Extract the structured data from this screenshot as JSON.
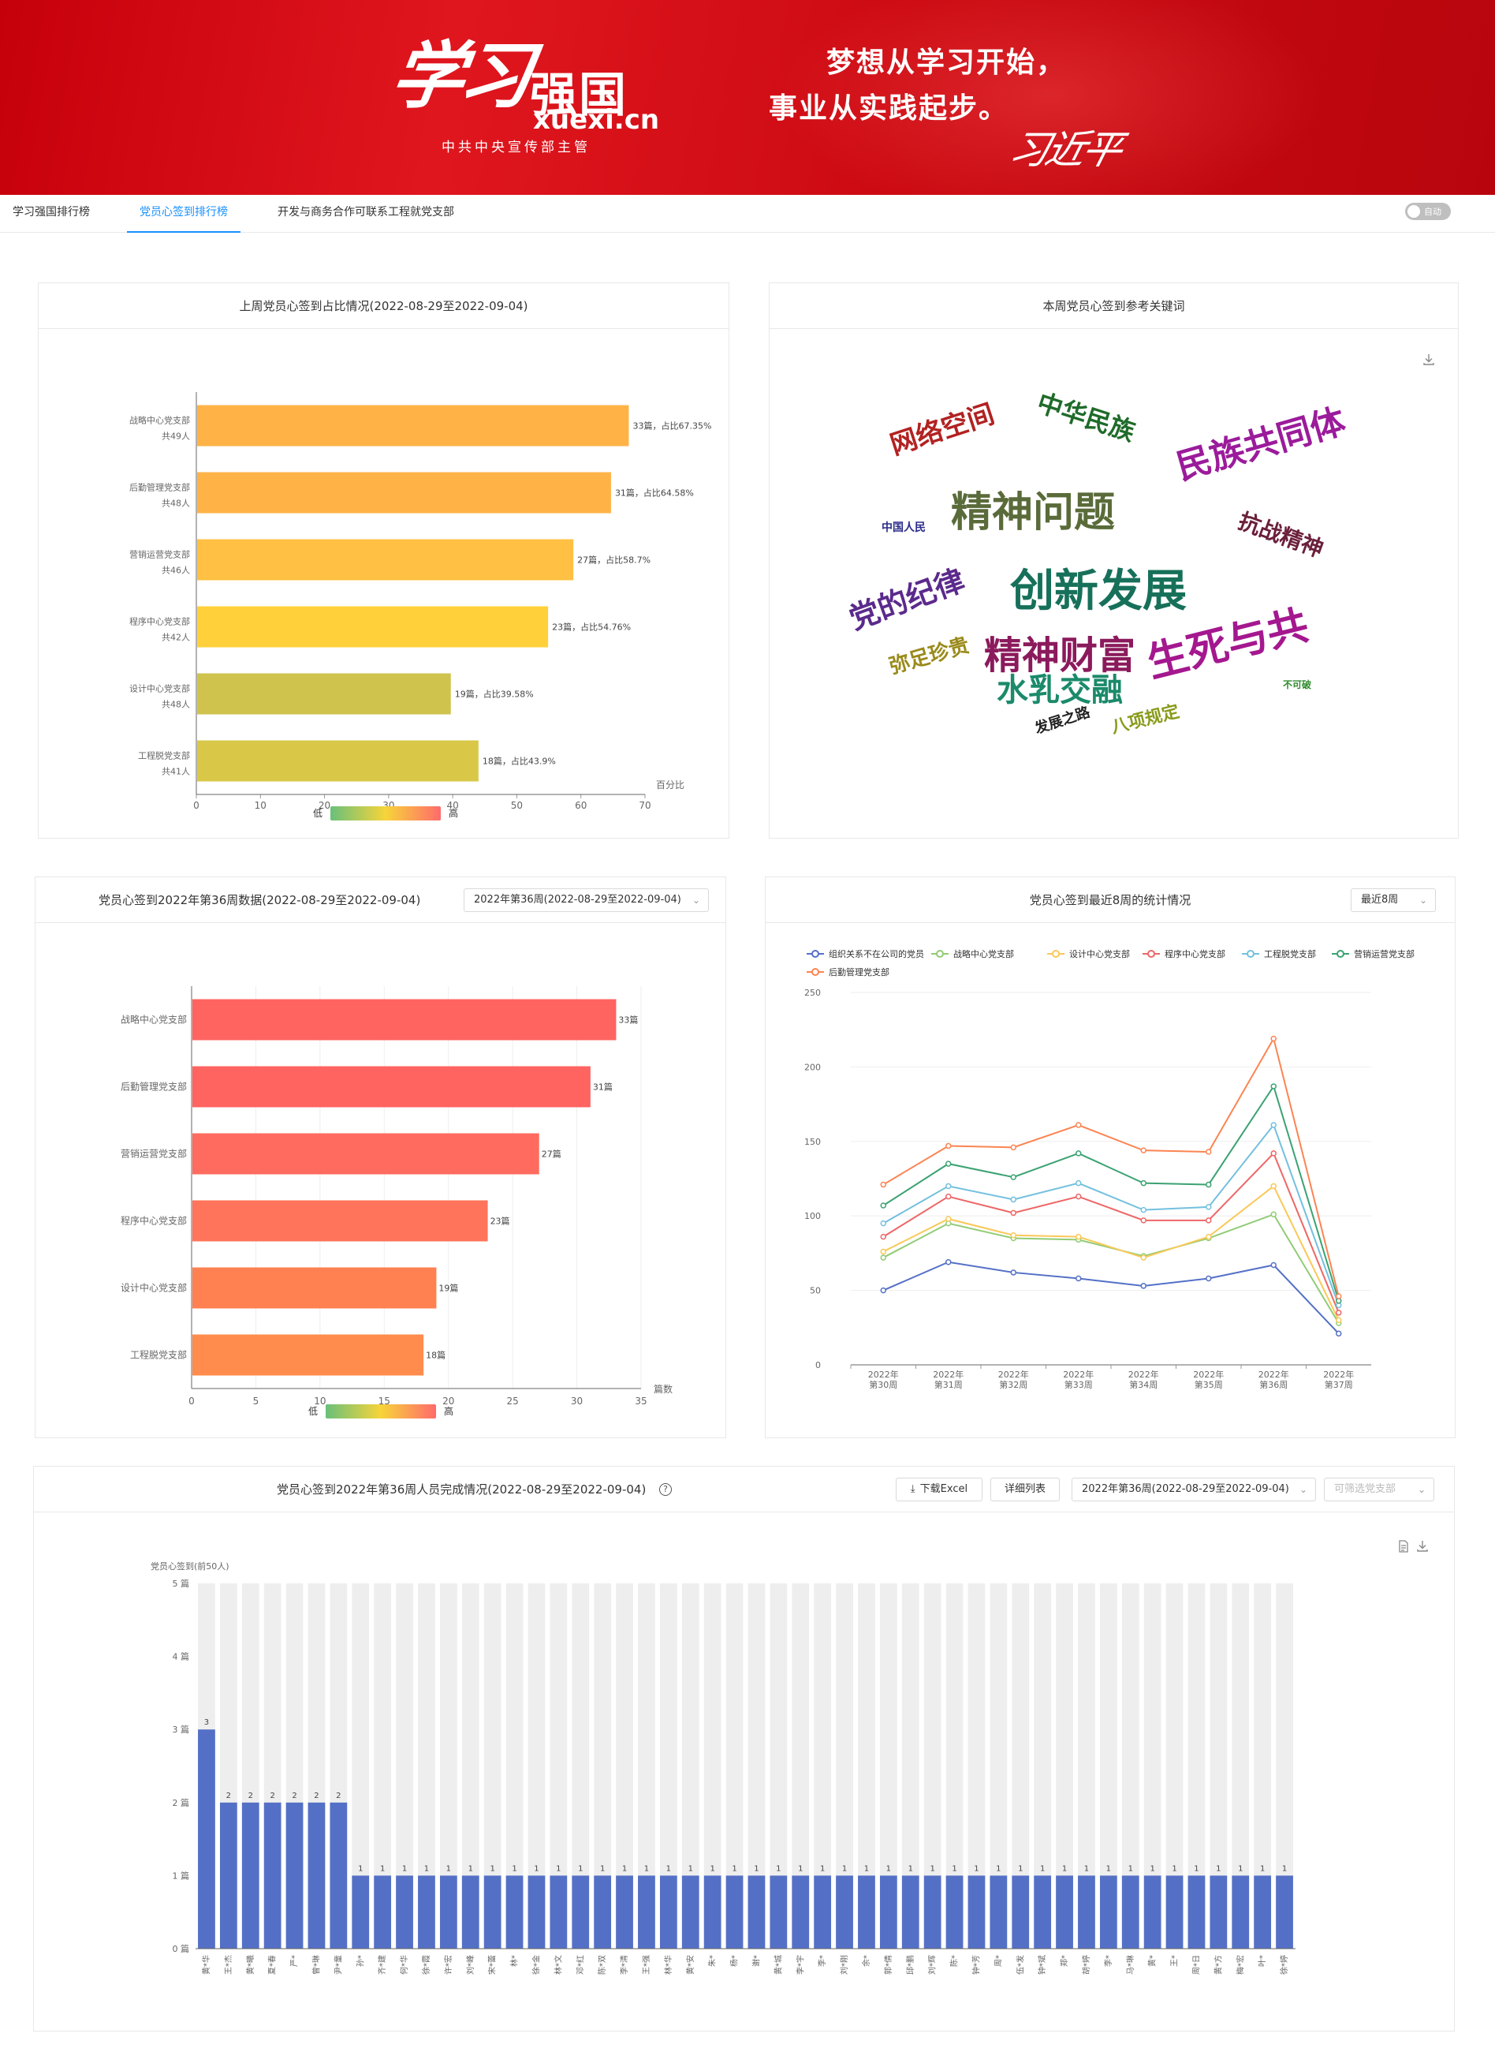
{
  "banner": {
    "logo_script": "学习",
    "logo_strong": "强国",
    "logo_url": "xuexi.cn",
    "logo_sub": "中共中央宣传部主管",
    "slogan_line1": "梦想从学习开始，",
    "slogan_line2": "事业从实践起步。",
    "signature": "习近平"
  },
  "tabs": [
    {
      "label": "学习强国排行榜"
    },
    {
      "label": "党员心签到排行榜",
      "active": true
    },
    {
      "label": "开发与商务合作可联系工程就党支部"
    }
  ],
  "toggle": {
    "label": "自动"
  },
  "colors": {
    "accent": "#1890ff",
    "banner_red": "#d10f17",
    "bar_blue": "#5470c6",
    "bar_bg": "#eeeeee"
  },
  "card1": {
    "title": "上周党员心签到占比情况(2022-08-29至2022-09-04)",
    "chart_data": {
      "type": "bar",
      "orientation": "horizontal",
      "categories": [
        "战略中心党支部",
        "后勤管理党支部",
        "营销运营党支部",
        "程序中心党支部",
        "设计中心党支部",
        "工程脱党支部"
      ],
      "category_sublabels": [
        "共49人",
        "共48人",
        "共46人",
        "共42人",
        "共48人",
        "共41人"
      ],
      "values": [
        67.35,
        64.58,
        58.7,
        54.76,
        39.58,
        43.9
      ],
      "data_labels": [
        "33篇，占比67.35%",
        "31篇，占比64.58%",
        "27篇，占比58.7%",
        "23篇，占比54.76%",
        "19篇，占比39.58%",
        "18篇，占比43.9%"
      ],
      "xlim": [
        0,
        70
      ],
      "xticks": [
        "0",
        "10",
        "20",
        "30",
        "40",
        "50",
        "60",
        "70"
      ],
      "xlabel": "百分比",
      "colors": [
        "#ffb347",
        "#ffb347",
        "#ffc043",
        "#ffd03a",
        "#cfc34e",
        "#d9c848"
      ],
      "legend": {
        "low": "低",
        "high": "高"
      }
    }
  },
  "card2": {
    "title": "本周党员心签到参考关键词",
    "download_icon": "download-icon",
    "words": [
      {
        "text": "网络空间",
        "color": "#b22222"
      },
      {
        "text": "中华民族",
        "color": "#1f6b2a"
      },
      {
        "text": "民族共同体",
        "color": "#9b1b9b"
      },
      {
        "text": "精神问题",
        "color": "#5a6b3a"
      },
      {
        "text": "中国人民",
        "color": "#2c2c8c"
      },
      {
        "text": "抗战精神",
        "color": "#6b1f3a"
      },
      {
        "text": "创新发展",
        "color": "#17705a"
      },
      {
        "text": "党的纪律",
        "color": "#5b2a8c"
      },
      {
        "text": "精神财富",
        "color": "#8b1a5c"
      },
      {
        "text": "生死与共",
        "color": "#a4188f"
      },
      {
        "text": "弥足珍贵",
        "color": "#9a8a1a"
      },
      {
        "text": "水乳交融",
        "color": "#1b8a6a"
      },
      {
        "text": "不可破",
        "color": "#2e8b2e"
      },
      {
        "text": "发展之路",
        "color": "#222222"
      },
      {
        "text": "八项规定",
        "color": "#8a9a1a"
      }
    ]
  },
  "card3": {
    "title": "党员心签到2022年第36周数据(2022-08-29至2022-09-04)",
    "select_value": "2022年第36周(2022-08-29至2022-09-04)",
    "chart_data": {
      "type": "bar",
      "orientation": "horizontal",
      "categories": [
        "战略中心党支部",
        "后勤管理党支部",
        "营销运营党支部",
        "程序中心党支部",
        "设计中心党支部",
        "工程脱党支部"
      ],
      "values": [
        33,
        31,
        27,
        23,
        19,
        18
      ],
      "data_labels": [
        "33篇",
        "31篇",
        "27篇",
        "23篇",
        "19篇",
        "18篇"
      ],
      "xlim": [
        0,
        35
      ],
      "xticks": [
        "0",
        "5",
        "10",
        "15",
        "20",
        "25",
        "30",
        "35"
      ],
      "xlabel": "篇数",
      "colors": [
        "#ff6461",
        "#ff6461",
        "#ff6b5e",
        "#ff745a",
        "#ff8050",
        "#ff8c4c"
      ],
      "legend": {
        "low": "低",
        "high": "高"
      }
    }
  },
  "card4": {
    "title": "党员心签到最近8周的统计情况",
    "select_value": "最近8周",
    "chart_data": {
      "type": "line",
      "categories": [
        "2022年\n第30周",
        "2022年\n第31周",
        "2022年\n第32周",
        "2022年\n第33周",
        "2022年\n第34周",
        "2022年\n第35周",
        "2022年\n第36周",
        "2022年\n第37周"
      ],
      "ylim": [
        0,
        250
      ],
      "yticks": [
        "0",
        "50",
        "100",
        "150",
        "200",
        "250"
      ],
      "legend_position": "top",
      "series": [
        {
          "name": "组织关系不在公司的党员",
          "color": "#5470c6",
          "values": [
            50,
            69,
            62,
            58,
            53,
            58,
            67,
            21
          ]
        },
        {
          "name": "战略中心党支部",
          "color": "#91cc75",
          "values": [
            72,
            95,
            85,
            84,
            73,
            85,
            101,
            28
          ]
        },
        {
          "name": "设计中心党支部",
          "color": "#fac858",
          "values": [
            76,
            98,
            87,
            86,
            72,
            86,
            120,
            30
          ]
        },
        {
          "name": "程序中心党支部",
          "color": "#ee6666",
          "values": [
            86,
            113,
            102,
            113,
            97,
            97,
            142,
            35
          ]
        },
        {
          "name": "工程脱党支部",
          "color": "#73c0de",
          "values": [
            95,
            120,
            111,
            122,
            104,
            106,
            161,
            40
          ]
        },
        {
          "name": "营销运营党支部",
          "color": "#3ba272",
          "values": [
            107,
            135,
            126,
            142,
            122,
            121,
            187,
            43
          ]
        },
        {
          "name": "后勤管理党支部",
          "color": "#fc8452",
          "values": [
            121,
            147,
            146,
            161,
            144,
            143,
            219,
            46
          ]
        }
      ]
    }
  },
  "card5": {
    "title": "党员心签到2022年第36周人员完成情况(2022-08-29至2022-09-04)",
    "help_icon": "question-circle-icon",
    "download_excel_label": "下载Excel",
    "detail_list_label": "详细列表",
    "select_value": "2022年第36周(2022-08-29至2022-09-04)",
    "branch_placeholder": "可筛选党支部",
    "toolbox_icons": [
      "data-view-icon",
      "download-icon"
    ],
    "chart_data": {
      "type": "bar",
      "ylabel": "党员心签到(前50人)",
      "ylim": [
        0,
        5
      ],
      "yticks": [
        "0 篇",
        "1 篇",
        "2 篇",
        "3 篇",
        "4 篇",
        "5 篇"
      ],
      "categories": [
        "黄*华",
        "王*杰",
        "黄*曦",
        "夏*春",
        "严*",
        "曾*琳",
        "尹*童",
        "孙*",
        "齐*建",
        "何*华",
        "徐*霞",
        "许*宏",
        "刘*峰",
        "宋*蕾",
        "林*",
        "徐*金",
        "林*文",
        "邓*红",
        "陈*双",
        "李*清",
        "王*强",
        "林*华",
        "黄*安",
        "朱*",
        "杨*",
        "谢*",
        "黄*城",
        "李*宇",
        "李*",
        "刘*刚",
        "余*",
        "郭*倩",
        "邱*鹏",
        "刘*辉",
        "陈*",
        "钟*芳",
        "周*",
        "伍*发",
        "钟*斌",
        "郑*",
        "胡*婷",
        "李*",
        "马*琳",
        "黄*",
        "王*",
        "周*日",
        "黄*方",
        "梅*宏",
        "叶*",
        "徐*婷"
      ],
      "values": [
        3,
        2,
        2,
        2,
        2,
        2,
        2,
        1,
        1,
        1,
        1,
        1,
        1,
        1,
        1,
        1,
        1,
        1,
        1,
        1,
        1,
        1,
        1,
        1,
        1,
        1,
        1,
        1,
        1,
        1,
        1,
        1,
        1,
        1,
        1,
        1,
        1,
        1,
        1,
        1,
        1,
        1,
        1,
        1,
        1,
        1,
        1,
        1,
        1,
        1
      ],
      "color": "#5470c6",
      "background_color": "#eeeeee"
    }
  }
}
